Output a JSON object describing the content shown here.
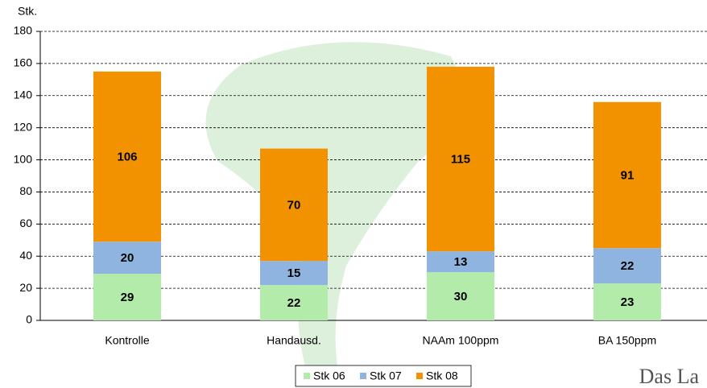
{
  "chart_data": {
    "type": "stacked_bar",
    "y_label": "Stk.",
    "categories": [
      "Kontrolle",
      "Handausd.",
      "NAAm 100ppm",
      "BA 150ppm"
    ],
    "series": [
      {
        "name": "Stk 06",
        "color": "#b3ecaa",
        "values": [
          29,
          22,
          30,
          23
        ]
      },
      {
        "name": "Stk 07",
        "color": "#8fb4e0",
        "values": [
          20,
          15,
          13,
          22
        ]
      },
      {
        "name": "Stk 08",
        "color": "#f39200",
        "values": [
          106,
          70,
          115,
          91
        ]
      }
    ],
    "ylim": [
      0,
      180
    ],
    "yticks": [
      0,
      20,
      40,
      60,
      80,
      100,
      120,
      140,
      160,
      180
    ],
    "grid": true,
    "legend": "bottom"
  },
  "logo": "Das La"
}
